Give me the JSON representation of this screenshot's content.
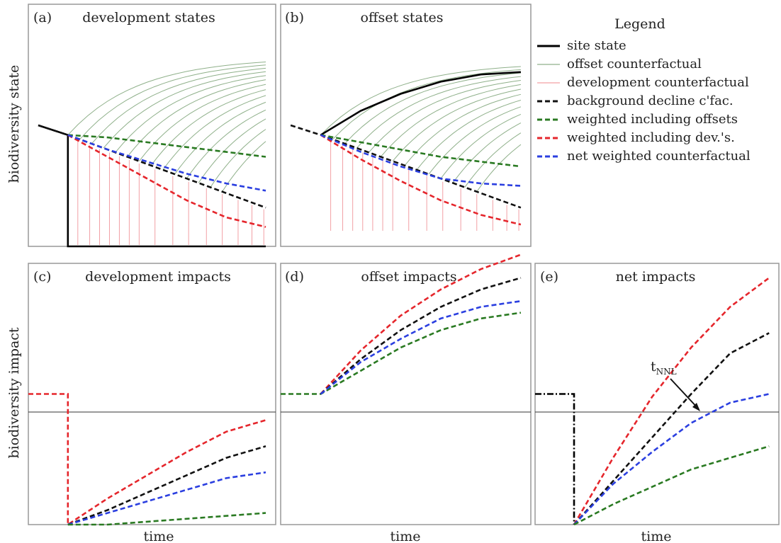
{
  "legend": {
    "title": "Legend",
    "items": [
      {
        "label": "site state",
        "color": "#000000",
        "dash": "solid",
        "weight": "thick"
      },
      {
        "label": "offset counterfactual",
        "color": "#8fb08a",
        "dash": "solid",
        "weight": "thin"
      },
      {
        "label": "development counterfactual",
        "color": "#f2a0a5",
        "dash": "solid",
        "weight": "thin"
      },
      {
        "label": "background decline c'fac.",
        "color": "#111111",
        "dash": "dashed",
        "weight": "thick"
      },
      {
        "label": "weighted including offsets",
        "color": "#2a7a22",
        "dash": "dashed",
        "weight": "thick"
      },
      {
        "label": "weighted including dev.'s.",
        "color": "#e5262c",
        "dash": "dashed",
        "weight": "thick"
      },
      {
        "label": "net weighted counterfactual",
        "color": "#2b3fe0",
        "dash": "dashed",
        "weight": "thick"
      }
    ]
  },
  "axes": {
    "top_ylabel": "biodiversity state",
    "bottom_ylabel": "biodiversity impact",
    "xlabel": "time"
  },
  "panels": {
    "a": {
      "tag": "(a)",
      "title": "development states"
    },
    "b": {
      "tag": "(b)",
      "title": "offset states"
    },
    "c": {
      "tag": "(c)",
      "title": "development impacts"
    },
    "d": {
      "tag": "(d)",
      "title": "offset impacts"
    },
    "e": {
      "tag": "(e)",
      "title": "net impacts",
      "annotation": "t",
      "annotation_sub": "NNL"
    }
  },
  "chart_data": [
    {
      "panel": "a",
      "type": "line",
      "x": [
        0,
        1,
        2,
        3,
        4,
        5,
        6,
        7,
        8,
        9,
        10
      ],
      "xlim": [
        -2,
        10.5
      ],
      "ylim": [
        0,
        10
      ],
      "series": [
        {
          "label_ref": "site state",
          "x": [
            -1.5,
            0,
            0,
            10
          ],
          "y": [
            5.0,
            4.6,
            0,
            0
          ]
        },
        {
          "label_ref": "background decline c'fac.",
          "x": [
            -1.5,
            0,
            2,
            4,
            6,
            8,
            10
          ],
          "y": [
            5.0,
            4.6,
            4.0,
            3.4,
            2.8,
            2.2,
            1.6
          ]
        },
        {
          "label_ref": "weighted including offsets",
          "x": [
            0,
            2,
            4,
            6,
            8,
            10
          ],
          "y": [
            4.6,
            4.5,
            4.3,
            4.1,
            3.9,
            3.7
          ]
        },
        {
          "label_ref": "weighted including dev.'s.",
          "x": [
            0,
            2,
            4,
            6,
            8,
            10
          ],
          "y": [
            4.6,
            3.7,
            2.8,
            1.9,
            1.2,
            0.8
          ]
        },
        {
          "label_ref": "net weighted counterfactual",
          "x": [
            0,
            2,
            4,
            6,
            8,
            10
          ],
          "y": [
            4.6,
            4.0,
            3.5,
            3.0,
            2.6,
            2.3
          ]
        }
      ]
    },
    {
      "panel": "b",
      "type": "line",
      "xlim": [
        -2,
        10.5
      ],
      "ylim": [
        0,
        10
      ],
      "series": [
        {
          "label_ref": "site state",
          "x": [
            0,
            2,
            4,
            6,
            8,
            10
          ],
          "y": [
            4.6,
            5.6,
            6.3,
            6.8,
            7.1,
            7.2
          ]
        },
        {
          "label_ref": "background decline c'fac.",
          "x": [
            -1.5,
            0,
            2,
            4,
            6,
            8,
            10
          ],
          "y": [
            5.0,
            4.6,
            4.0,
            3.4,
            2.8,
            2.2,
            1.6
          ]
        },
        {
          "label_ref": "weighted including offsets",
          "x": [
            0,
            2,
            4,
            6,
            8,
            10
          ],
          "y": [
            4.6,
            4.3,
            4.0,
            3.7,
            3.5,
            3.3
          ]
        },
        {
          "label_ref": "weighted including dev.'s.",
          "x": [
            0,
            2,
            4,
            6,
            8,
            10
          ],
          "y": [
            4.6,
            3.6,
            2.7,
            1.9,
            1.3,
            0.9
          ]
        },
        {
          "label_ref": "net weighted counterfactual",
          "x": [
            0,
            2,
            4,
            6,
            8,
            10
          ],
          "y": [
            4.6,
            3.9,
            3.3,
            2.8,
            2.6,
            2.5
          ]
        }
      ]
    },
    {
      "panel": "c",
      "type": "line",
      "xlim": [
        -2,
        10.5
      ],
      "ylim": [
        -4.5,
        4.5
      ],
      "series": [
        {
          "label_ref": "weighted including dev.'s.",
          "x": [
            -2,
            0,
            0,
            2,
            4,
            6,
            8,
            10
          ],
          "y": [
            0,
            0,
            -4.5,
            -3.6,
            -2.8,
            -2.0,
            -1.3,
            -0.9
          ]
        },
        {
          "label_ref": "background decline c'fac.",
          "x": [
            0,
            2,
            4,
            6,
            8,
            10
          ],
          "y": [
            -4.5,
            -4.0,
            -3.4,
            -2.8,
            -2.2,
            -1.8
          ]
        },
        {
          "label_ref": "net weighted counterfactual",
          "x": [
            0,
            2,
            4,
            6,
            8,
            10
          ],
          "y": [
            -4.5,
            -4.1,
            -3.7,
            -3.3,
            -2.9,
            -2.7
          ]
        },
        {
          "label_ref": "weighted including offsets",
          "x": [
            0,
            2,
            4,
            6,
            8,
            10
          ],
          "y": [
            -4.5,
            -4.5,
            -4.4,
            -4.3,
            -4.2,
            -4.1
          ]
        }
      ]
    },
    {
      "panel": "d",
      "type": "line",
      "xlim": [
        -2,
        10.5
      ],
      "ylim": [
        -4.5,
        4.5
      ],
      "series": [
        {
          "label_ref": "weighted including offsets",
          "x": [
            -2,
            0,
            2,
            4,
            6,
            8,
            10
          ],
          "y": [
            0,
            0,
            0.8,
            1.6,
            2.2,
            2.6,
            2.8
          ]
        },
        {
          "label_ref": "weighted including dev.'s.",
          "x": [
            0,
            2,
            4,
            6,
            8,
            10
          ],
          "y": [
            0,
            1.5,
            2.7,
            3.6,
            4.3,
            4.8
          ]
        },
        {
          "label_ref": "background decline c'fac.",
          "x": [
            0,
            2,
            4,
            6,
            8,
            10
          ],
          "y": [
            0,
            1.2,
            2.2,
            3.0,
            3.6,
            4.0
          ]
        },
        {
          "label_ref": "net weighted counterfactual",
          "x": [
            0,
            2,
            4,
            6,
            8,
            10
          ],
          "y": [
            0,
            1.1,
            1.9,
            2.6,
            3.0,
            3.2
          ]
        }
      ]
    },
    {
      "panel": "e",
      "type": "line",
      "xlim": [
        -2,
        10.5
      ],
      "ylim": [
        -4.5,
        4.5
      ],
      "series": [
        {
          "label_ref": "site state",
          "x": [
            -2,
            0,
            0
          ],
          "y": [
            0,
            0,
            -4.5
          ]
        },
        {
          "label_ref": "weighted including dev.'s.",
          "x": [
            0,
            2,
            4,
            6,
            8,
            10
          ],
          "y": [
            -4.5,
            -2.2,
            -0.1,
            1.6,
            3.0,
            4.0
          ]
        },
        {
          "label_ref": "background decline c'fac.",
          "x": [
            0,
            2,
            4,
            6,
            8,
            10
          ],
          "y": [
            -4.5,
            -3.0,
            -1.5,
            0.0,
            1.4,
            2.1
          ]
        },
        {
          "label_ref": "net weighted counterfactual",
          "x": [
            0,
            2,
            4,
            6,
            8,
            10
          ],
          "y": [
            -4.5,
            -3.1,
            -2.0,
            -1.0,
            -0.3,
            0.0
          ]
        },
        {
          "label_ref": "weighted including offsets",
          "x": [
            0,
            2,
            4,
            6,
            8,
            10
          ],
          "y": [
            -4.5,
            -3.8,
            -3.2,
            -2.6,
            -2.2,
            -1.8
          ]
        }
      ]
    }
  ]
}
